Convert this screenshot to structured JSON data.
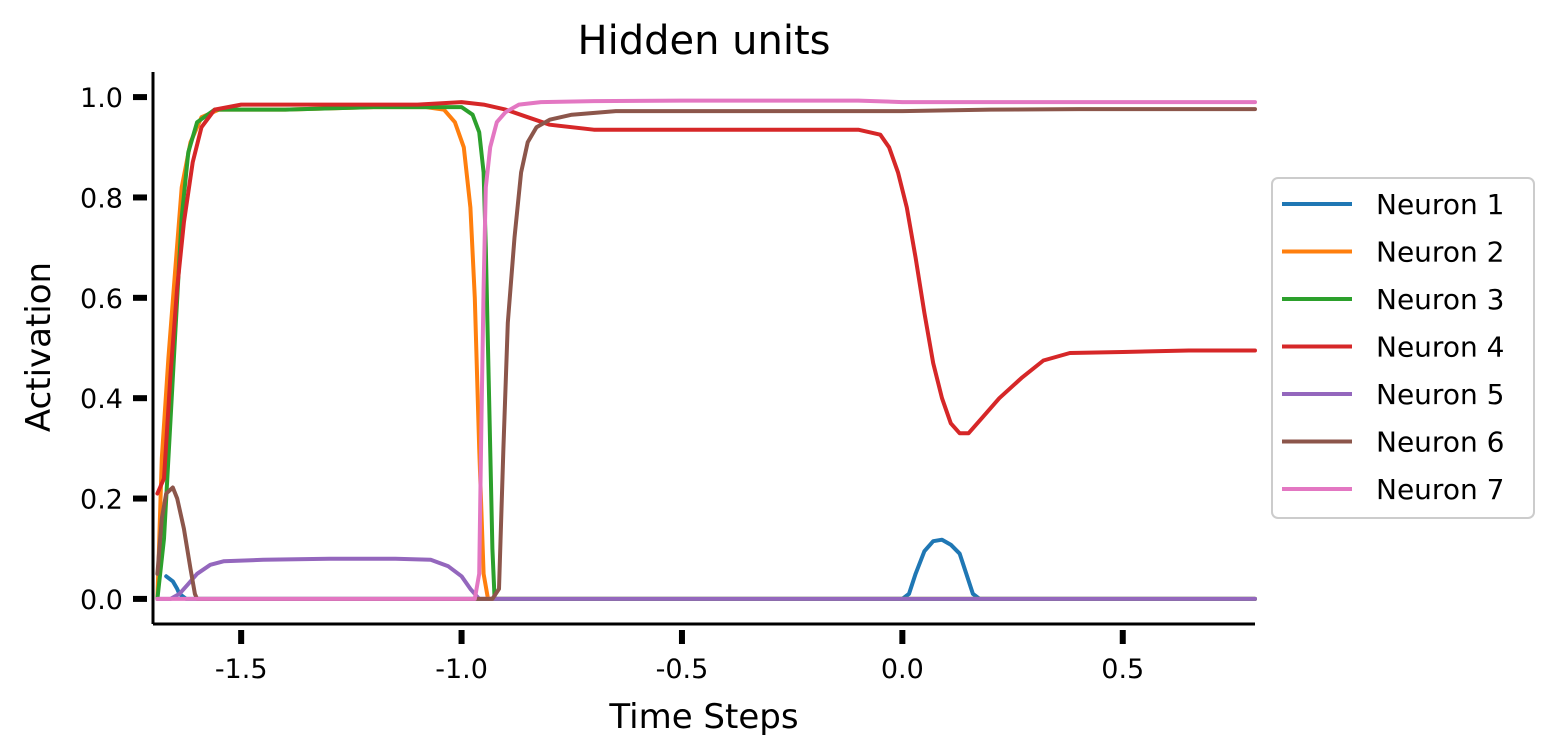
{
  "chart_data": {
    "type": "line",
    "title": "Hidden units",
    "xlabel": "Time Steps",
    "ylabel": "Activation",
    "xlim": [
      -1.7,
      0.8
    ],
    "ylim": [
      -0.05,
      1.05
    ],
    "xticks": [
      -1.5,
      -1.0,
      -0.5,
      0.0,
      0.5
    ],
    "xtick_labels": [
      "-1.5",
      "-1.0",
      "-0.5",
      "0.0",
      "0.5"
    ],
    "yticks": [
      0.0,
      0.2,
      0.4,
      0.6,
      0.8,
      1.0
    ],
    "ytick_labels": [
      "0.0",
      "0.2",
      "0.4",
      "0.6",
      "0.8",
      "1.0"
    ],
    "grid": false,
    "legend_position": "center-right",
    "series": [
      {
        "name": "Neuron 1",
        "color": "#1f77b4",
        "points": [
          [
            -1.67,
            0.045
          ],
          [
            -1.655,
            0.035
          ],
          [
            -1.645,
            0.02
          ],
          [
            -1.64,
            0.01
          ],
          [
            -1.625,
            0.0
          ],
          [
            0.0,
            0.0
          ],
          [
            0.015,
            0.01
          ],
          [
            0.03,
            0.05
          ],
          [
            0.05,
            0.095
          ],
          [
            0.07,
            0.115
          ],
          [
            0.09,
            0.118
          ],
          [
            0.11,
            0.108
          ],
          [
            0.13,
            0.09
          ],
          [
            0.145,
            0.05
          ],
          [
            0.16,
            0.01
          ],
          [
            0.175,
            0.0
          ],
          [
            0.8,
            0.0
          ]
        ]
      },
      {
        "name": "Neuron 2",
        "color": "#ff7f0e",
        "points": [
          [
            -1.69,
            0.0
          ],
          [
            -1.68,
            0.28
          ],
          [
            -1.665,
            0.48
          ],
          [
            -1.65,
            0.65
          ],
          [
            -1.635,
            0.82
          ],
          [
            -1.615,
            0.91
          ],
          [
            -1.59,
            0.96
          ],
          [
            -1.55,
            0.975
          ],
          [
            -1.4,
            0.975
          ],
          [
            -1.2,
            0.98
          ],
          [
            -1.08,
            0.98
          ],
          [
            -1.04,
            0.975
          ],
          [
            -1.015,
            0.95
          ],
          [
            -0.995,
            0.9
          ],
          [
            -0.98,
            0.78
          ],
          [
            -0.97,
            0.6
          ],
          [
            -0.96,
            0.3
          ],
          [
            -0.95,
            0.05
          ],
          [
            -0.94,
            0.0
          ],
          [
            0.8,
            0.0
          ]
        ]
      },
      {
        "name": "Neuron 3",
        "color": "#2ca02c",
        "points": [
          [
            -1.69,
            0.0
          ],
          [
            -1.675,
            0.12
          ],
          [
            -1.665,
            0.28
          ],
          [
            -1.66,
            0.36
          ],
          [
            -1.65,
            0.52
          ],
          [
            -1.635,
            0.76
          ],
          [
            -1.62,
            0.89
          ],
          [
            -1.6,
            0.95
          ],
          [
            -1.56,
            0.975
          ],
          [
            -1.4,
            0.975
          ],
          [
            -1.2,
            0.98
          ],
          [
            -1.0,
            0.98
          ],
          [
            -0.975,
            0.965
          ],
          [
            -0.96,
            0.93
          ],
          [
            -0.95,
            0.85
          ],
          [
            -0.945,
            0.7
          ],
          [
            -0.94,
            0.5
          ],
          [
            -0.935,
            0.3
          ],
          [
            -0.93,
            0.1
          ],
          [
            -0.925,
            0.0
          ],
          [
            0.8,
            0.0
          ]
        ]
      },
      {
        "name": "Neuron 4",
        "color": "#d62728",
        "points": [
          [
            -1.69,
            0.21
          ],
          [
            -1.675,
            0.24
          ],
          [
            -1.66,
            0.45
          ],
          [
            -1.645,
            0.62
          ],
          [
            -1.63,
            0.75
          ],
          [
            -1.61,
            0.87
          ],
          [
            -1.59,
            0.94
          ],
          [
            -1.56,
            0.975
          ],
          [
            -1.5,
            0.985
          ],
          [
            -1.3,
            0.985
          ],
          [
            -1.1,
            0.985
          ],
          [
            -1.0,
            0.99
          ],
          [
            -0.95,
            0.985
          ],
          [
            -0.9,
            0.975
          ],
          [
            -0.85,
            0.96
          ],
          [
            -0.8,
            0.945
          ],
          [
            -0.7,
            0.935
          ],
          [
            -0.5,
            0.935
          ],
          [
            -0.3,
            0.935
          ],
          [
            -0.1,
            0.935
          ],
          [
            -0.05,
            0.925
          ],
          [
            -0.03,
            0.9
          ],
          [
            -0.01,
            0.85
          ],
          [
            0.01,
            0.78
          ],
          [
            0.03,
            0.68
          ],
          [
            0.05,
            0.57
          ],
          [
            0.07,
            0.47
          ],
          [
            0.09,
            0.4
          ],
          [
            0.11,
            0.35
          ],
          [
            0.13,
            0.33
          ],
          [
            0.15,
            0.33
          ],
          [
            0.18,
            0.36
          ],
          [
            0.22,
            0.4
          ],
          [
            0.27,
            0.44
          ],
          [
            0.32,
            0.475
          ],
          [
            0.38,
            0.49
          ],
          [
            0.5,
            0.492
          ],
          [
            0.65,
            0.495
          ],
          [
            0.8,
            0.495
          ]
        ]
      },
      {
        "name": "Neuron 5",
        "color": "#9467bd",
        "points": [
          [
            -1.69,
            0.0
          ],
          [
            -1.66,
            0.0
          ],
          [
            -1.64,
            0.01
          ],
          [
            -1.62,
            0.03
          ],
          [
            -1.6,
            0.05
          ],
          [
            -1.57,
            0.068
          ],
          [
            -1.54,
            0.075
          ],
          [
            -1.45,
            0.078
          ],
          [
            -1.3,
            0.08
          ],
          [
            -1.15,
            0.08
          ],
          [
            -1.07,
            0.078
          ],
          [
            -1.03,
            0.065
          ],
          [
            -1.0,
            0.045
          ],
          [
            -0.98,
            0.02
          ],
          [
            -0.96,
            0.0
          ],
          [
            -0.5,
            0.0
          ],
          [
            0.0,
            0.0
          ],
          [
            0.5,
            0.0
          ],
          [
            0.8,
            0.0
          ]
        ]
      },
      {
        "name": "Neuron 6",
        "color": "#8c564b",
        "points": [
          [
            -1.69,
            0.05
          ],
          [
            -1.68,
            0.16
          ],
          [
            -1.67,
            0.21
          ],
          [
            -1.655,
            0.222
          ],
          [
            -1.645,
            0.2
          ],
          [
            -1.63,
            0.14
          ],
          [
            -1.615,
            0.06
          ],
          [
            -1.605,
            0.01
          ],
          [
            -1.6,
            0.0
          ],
          [
            -0.93,
            0.0
          ],
          [
            -0.915,
            0.02
          ],
          [
            -0.905,
            0.3
          ],
          [
            -0.895,
            0.55
          ],
          [
            -0.88,
            0.72
          ],
          [
            -0.865,
            0.85
          ],
          [
            -0.85,
            0.91
          ],
          [
            -0.83,
            0.94
          ],
          [
            -0.8,
            0.955
          ],
          [
            -0.75,
            0.965
          ],
          [
            -0.65,
            0.972
          ],
          [
            -0.5,
            0.972
          ],
          [
            -0.3,
            0.972
          ],
          [
            -0.1,
            0.972
          ],
          [
            0.0,
            0.972
          ],
          [
            0.2,
            0.975
          ],
          [
            0.4,
            0.976
          ],
          [
            0.6,
            0.976
          ],
          [
            0.8,
            0.976
          ]
        ]
      },
      {
        "name": "Neuron 7",
        "color": "#e377c2",
        "points": [
          [
            -1.69,
            0.0
          ],
          [
            -1.5,
            0.0
          ],
          [
            -1.2,
            0.0
          ],
          [
            -0.97,
            0.0
          ],
          [
            -0.96,
            0.05
          ],
          [
            -0.955,
            0.35
          ],
          [
            -0.95,
            0.62
          ],
          [
            -0.945,
            0.82
          ],
          [
            -0.935,
            0.9
          ],
          [
            -0.92,
            0.95
          ],
          [
            -0.9,
            0.97
          ],
          [
            -0.87,
            0.985
          ],
          [
            -0.82,
            0.99
          ],
          [
            -0.7,
            0.992
          ],
          [
            -0.5,
            0.993
          ],
          [
            -0.3,
            0.993
          ],
          [
            -0.1,
            0.993
          ],
          [
            0.0,
            0.99
          ],
          [
            0.2,
            0.99
          ],
          [
            0.4,
            0.99
          ],
          [
            0.6,
            0.99
          ],
          [
            0.8,
            0.99
          ]
        ]
      }
    ]
  }
}
